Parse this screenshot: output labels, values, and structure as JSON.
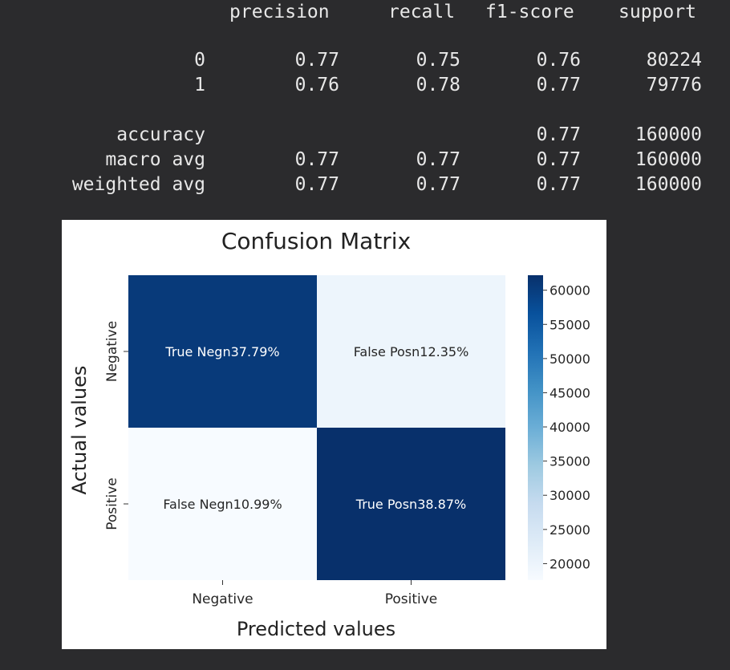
{
  "report": {
    "headers": [
      "precision",
      "recall",
      "f1-score",
      "support"
    ],
    "rows": [
      {
        "label": "0",
        "precision": "0.77",
        "recall": "0.75",
        "f1": "0.76",
        "support": "80224"
      },
      {
        "label": "1",
        "precision": "0.76",
        "recall": "0.78",
        "f1": "0.77",
        "support": "79776"
      },
      {
        "label": "accuracy",
        "precision": "",
        "recall": "",
        "f1": "0.77",
        "support": "160000"
      },
      {
        "label": "macro avg",
        "precision": "0.77",
        "recall": "0.77",
        "f1": "0.77",
        "support": "160000"
      },
      {
        "label": "weighted avg",
        "precision": "0.77",
        "recall": "0.77",
        "f1": "0.77",
        "support": "160000"
      }
    ]
  },
  "chart_data": {
    "type": "heatmap",
    "title": "Confusion Matrix",
    "xlabel": "Predicted values",
    "ylabel": "Actual values",
    "x_categories": [
      "Negative",
      "Positive"
    ],
    "y_categories": [
      "Negative",
      "Positive"
    ],
    "values": [
      [
        60464,
        19760
      ],
      [
        17584,
        62192
      ]
    ],
    "annotations": [
      [
        "True Negn37.79%",
        "False Posn12.35%"
      ],
      [
        "False Negn10.99%",
        "True Posn38.87%"
      ]
    ],
    "colorbar": {
      "range": [
        17584,
        62192
      ],
      "ticks": [
        20000,
        25000,
        30000,
        35000,
        40000,
        45000,
        50000,
        55000,
        60000
      ],
      "colormap": "Blues"
    },
    "colors": {
      "dark": "#08306b",
      "light": "#f7fbff",
      "mid": "#6aaed6"
    }
  }
}
